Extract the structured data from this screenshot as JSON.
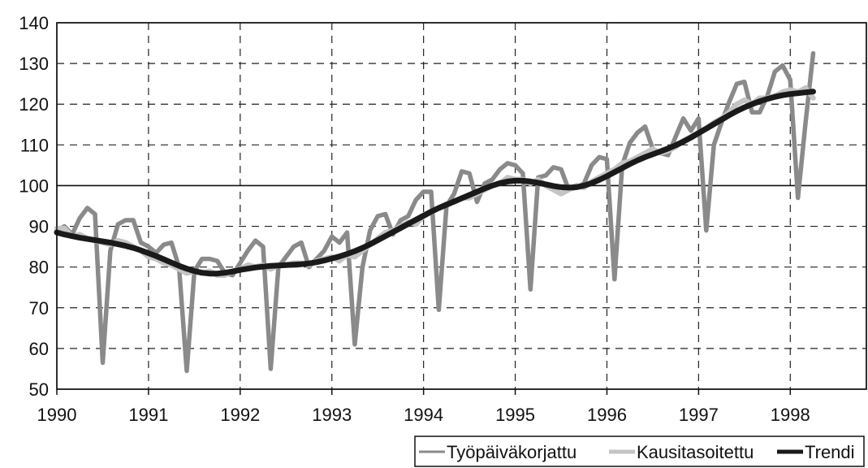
{
  "chart_data": {
    "type": "line",
    "title": "",
    "xlabel": "",
    "ylabel": "",
    "xlim": [
      1990,
      1998.83
    ],
    "ylim": [
      50,
      140
    ],
    "x_ticks": [
      "1990",
      "1991",
      "1992",
      "1993",
      "1994",
      "1995",
      "1996",
      "1997",
      "1998"
    ],
    "y_ticks": [
      "50",
      "60",
      "70",
      "80",
      "90",
      "100",
      "110",
      "120",
      "130",
      "140"
    ],
    "grid": true,
    "grid_style": "dashed",
    "reference_line": 100,
    "legend_position": "bottom-right",
    "x_start": 1990,
    "x_step": 0.08333,
    "series": [
      {
        "name": "Työpäiväkorjattu",
        "color": "#8a8a8a",
        "values": [
          89,
          90,
          88,
          92,
          94.5,
          93,
          56.5,
          84,
          90.5,
          91.5,
          91.5,
          86,
          85,
          83.5,
          85.5,
          86,
          80,
          54.5,
          79,
          82,
          82,
          81.5,
          78.5,
          78,
          81,
          84,
          86.5,
          85,
          55,
          80,
          82.5,
          85,
          86,
          80,
          82,
          84,
          87.5,
          86,
          88.5,
          61,
          80,
          89,
          92.5,
          93,
          88,
          91.5,
          92.5,
          96.5,
          98.5,
          98.5,
          69.5,
          95,
          98,
          103.5,
          103,
          96,
          100.5,
          101.5,
          104,
          105.5,
          105,
          103,
          74.5,
          102,
          102.5,
          104.5,
          104,
          99,
          99.5,
          100.5,
          105,
          107,
          106.5,
          77,
          105,
          110.5,
          113,
          114.5,
          109,
          108,
          107.5,
          112,
          116.5,
          113.5,
          116.5,
          89,
          110,
          115.5,
          120.5,
          125,
          125.5,
          118,
          118,
          122,
          128,
          129.5,
          126,
          97,
          115.5,
          132.5
        ]
      },
      {
        "name": "Kausitasoitettu",
        "color": "#c4c4c4",
        "values": [
          89.5,
          89.5,
          87.5,
          88,
          87,
          86.5,
          86,
          85.5,
          86.5,
          86,
          85,
          84,
          82.5,
          82,
          81,
          80.5,
          79.5,
          78.5,
          79,
          78.5,
          79,
          78,
          78,
          79,
          79.5,
          80.5,
          80,
          80.5,
          79.5,
          80.5,
          80.5,
          81,
          81,
          80.5,
          81.5,
          82,
          82.5,
          81.5,
          83,
          82.5,
          84,
          85.5,
          87,
          88.5,
          89,
          90,
          91,
          90.5,
          92.5,
          93.5,
          94.5,
          95.5,
          96,
          97,
          97,
          98,
          99,
          100,
          100.5,
          102,
          101.5,
          101.5,
          100.5,
          101.5,
          100,
          99,
          98,
          99,
          100,
          99.5,
          101,
          102,
          103,
          104,
          105.5,
          106,
          107,
          108,
          109,
          108,
          108.5,
          109.5,
          111,
          112,
          113,
          114,
          115.5,
          116.5,
          118,
          120,
          121,
          120,
          121.5,
          121.5,
          122,
          123,
          123.5,
          123,
          124,
          121.5
        ]
      },
      {
        "name": "Trendi",
        "color": "#1a1a1a",
        "values": [
          88.5,
          88.0,
          87.6,
          87.2,
          86.9,
          86.6,
          86.3,
          86.0,
          85.6,
          85.2,
          84.7,
          84.1,
          83.4,
          82.7,
          81.9,
          81.1,
          80.3,
          79.6,
          79.0,
          78.6,
          78.4,
          78.4,
          78.6,
          78.9,
          79.3,
          79.6,
          79.9,
          80.1,
          80.3,
          80.4,
          80.5,
          80.6,
          80.7,
          80.9,
          81.2,
          81.6,
          82.1,
          82.6,
          83.2,
          83.9,
          84.7,
          85.6,
          86.6,
          87.6,
          88.6,
          89.6,
          90.6,
          91.6,
          92.6,
          93.6,
          94.5,
          95.3,
          96.1,
          96.9,
          97.7,
          98.5,
          99.3,
          100.0,
          100.6,
          101.0,
          101.2,
          101.2,
          101.0,
          100.7,
          100.3,
          99.9,
          99.6,
          99.5,
          99.6,
          100.0,
          100.6,
          101.4,
          102.3,
          103.3,
          104.3,
          105.3,
          106.2,
          107.0,
          107.7,
          108.4,
          109.1,
          109.9,
          110.8,
          111.8,
          112.9,
          114.0,
          115.1,
          116.2,
          117.3,
          118.3,
          119.2,
          120.0,
          120.7,
          121.3,
          121.8,
          122.2,
          122.5,
          122.7,
          122.9,
          123.1
        ]
      }
    ]
  }
}
